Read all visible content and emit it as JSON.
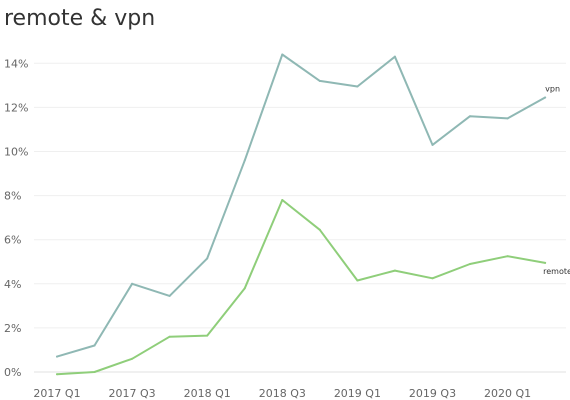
{
  "chart_data": {
    "type": "line",
    "title": "remote & vpn",
    "xlabel": "",
    "ylabel": "",
    "ylim": [
      0,
      15
    ],
    "y_tick_values": [
      0,
      2,
      4,
      6,
      8,
      10,
      12,
      14
    ],
    "y_tick_labels": [
      "0%",
      "2%",
      "4%",
      "6%",
      "8%",
      "10%",
      "12%",
      "14%"
    ],
    "grid": "horizontal",
    "x": [
      "2017 Q1",
      "2017 Q2",
      "2017 Q3",
      "2017 Q4",
      "2018 Q1",
      "2018 Q2",
      "2018 Q3",
      "2018 Q4",
      "2019 Q1",
      "2019 Q2",
      "2019 Q3",
      "2019 Q4",
      "2020 Q1",
      "2020 Q2"
    ],
    "x_tick_labels": [
      "2017 Q1",
      "",
      "2017 Q3",
      "",
      "2018 Q1",
      "",
      "2018 Q3",
      "",
      "2019 Q1",
      "",
      "2019 Q3",
      "",
      "2020 Q1",
      ""
    ],
    "series": [
      {
        "name": "vpn",
        "color": "#8fb8b4",
        "values": [
          0.7,
          1.2,
          4.0,
          3.45,
          5.15,
          9.6,
          14.4,
          13.2,
          12.95,
          14.3,
          10.3,
          11.6,
          11.5,
          12.45
        ]
      },
      {
        "name": "remote",
        "color": "#8fce7a",
        "values": [
          -0.1,
          0.0,
          0.6,
          1.6,
          1.65,
          3.8,
          7.8,
          6.45,
          4.15,
          4.6,
          4.25,
          4.9,
          5.25,
          4.95
        ]
      }
    ]
  }
}
